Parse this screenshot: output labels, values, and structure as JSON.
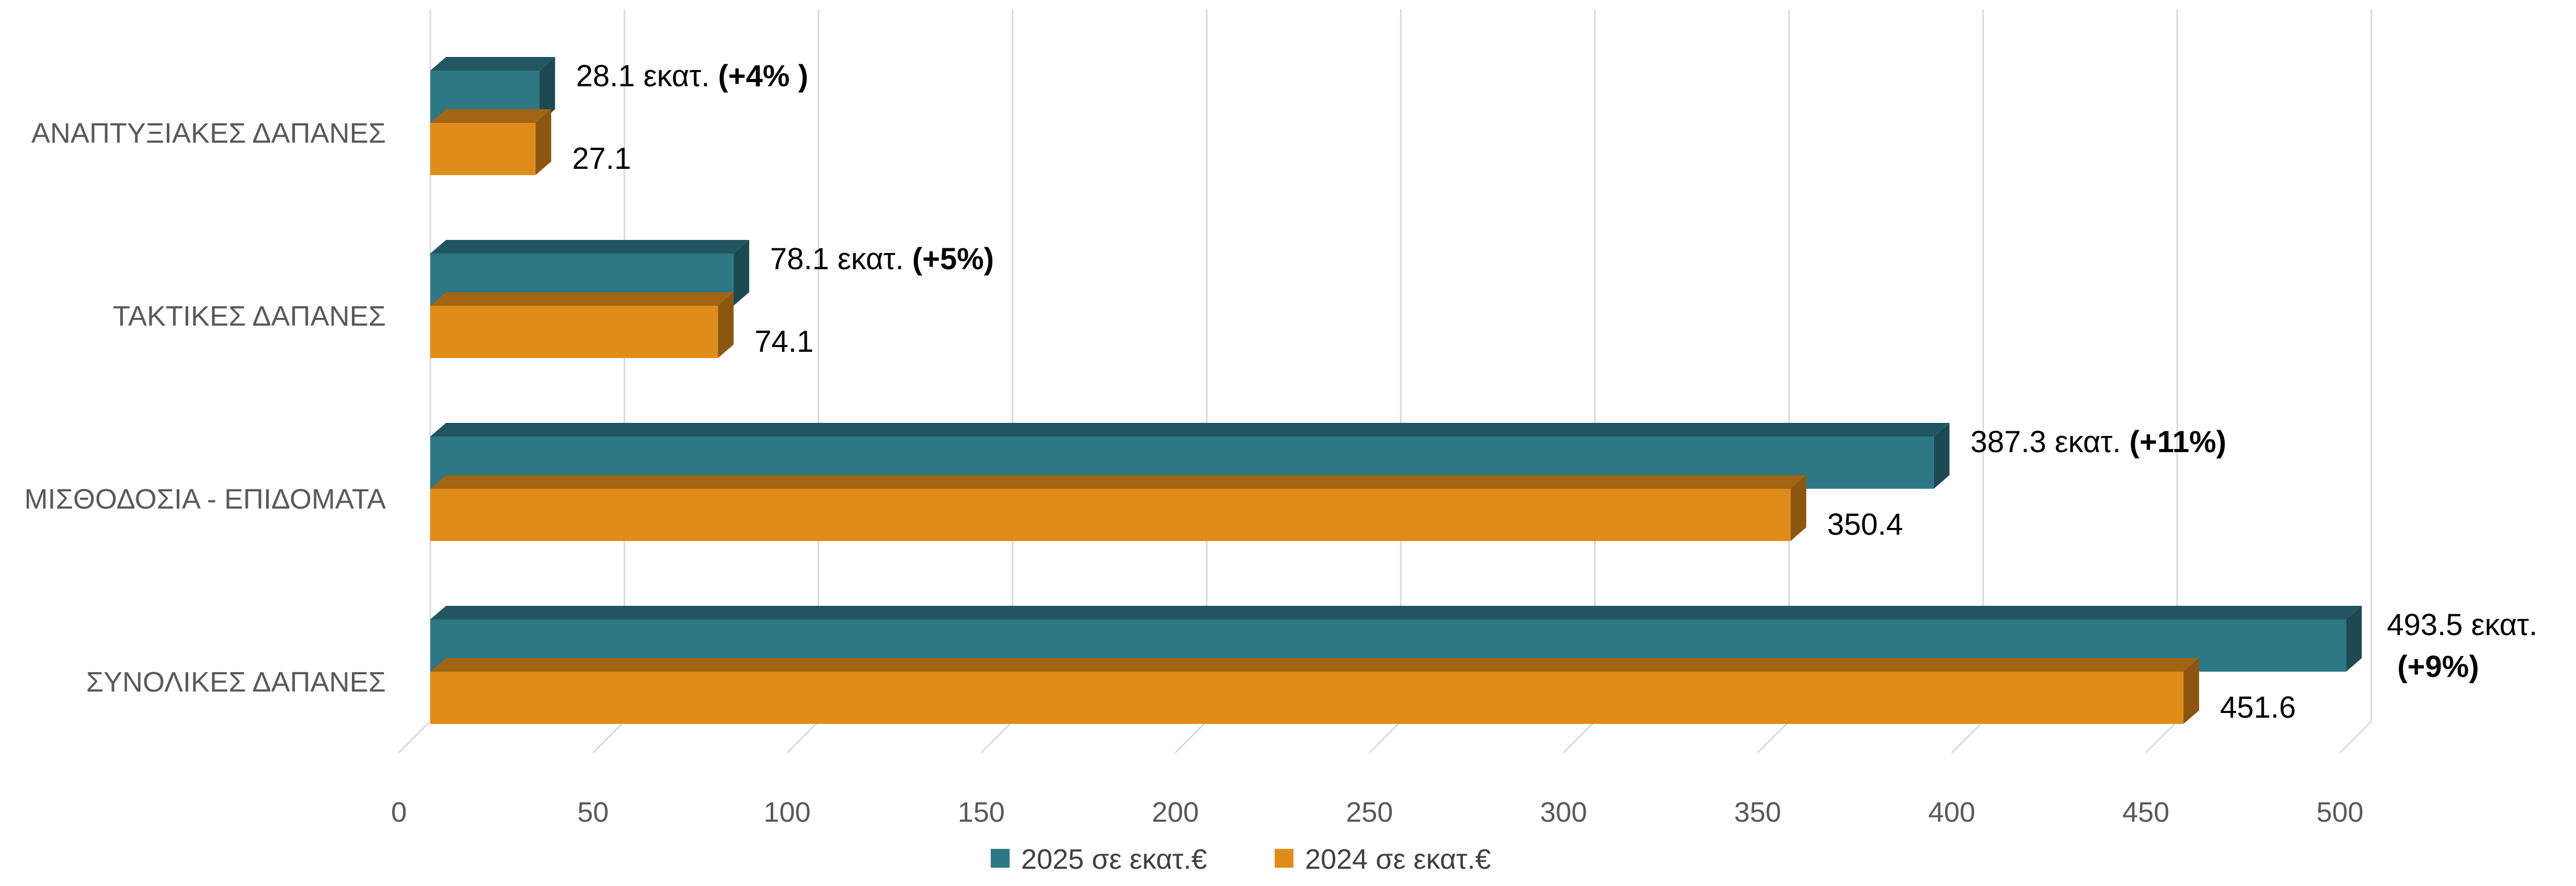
{
  "chart_data": {
    "type": "bar",
    "orientation": "horizontal",
    "three_d": true,
    "categories": [
      "ΑΝΑΠΤΥΞΙΑΚΕΣ ΔΑΠΑΝΕΣ",
      "ΤΑΚΤΙΚΕΣ ΔΑΠΑΝΕΣ",
      "ΜΙΣΘΟΔΟΣΙΑ - ΕΠΙΔΟΜΑΤΑ",
      "ΣΥΝΟΛΙΚΕΣ ΔΑΠΑΝΕΣ"
    ],
    "series": [
      {
        "name": "2025 σε εκατ.€",
        "color": "#2e7785",
        "values": [
          28.1,
          78.1,
          387.3,
          493.5
        ],
        "labels": [
          {
            "text": "28.1 εκατ.",
            "bold": "(+4% )"
          },
          {
            "text": "78.1 εκατ.",
            "bold": "(+5%)"
          },
          {
            "text": "387.3 εκατ.",
            "bold": "(+11%)"
          },
          {
            "text": "493.5 εκατ.",
            "bold": "(+9%)"
          }
        ]
      },
      {
        "name": "2024 σε εκατ.€",
        "color": "#e08c1a",
        "values": [
          27.1,
          74.1,
          350.4,
          451.6
        ],
        "labels": [
          {
            "text": "27.1"
          },
          {
            "text": "74.1"
          },
          {
            "text": "350.4"
          },
          {
            "text": "451.6"
          }
        ]
      }
    ],
    "xlim": [
      0,
      500
    ],
    "ticks": [
      "0",
      "50",
      "100",
      "150",
      "200",
      "250",
      "300",
      "350",
      "400",
      "450",
      "500"
    ],
    "grid": true,
    "legend_position": "bottom"
  }
}
